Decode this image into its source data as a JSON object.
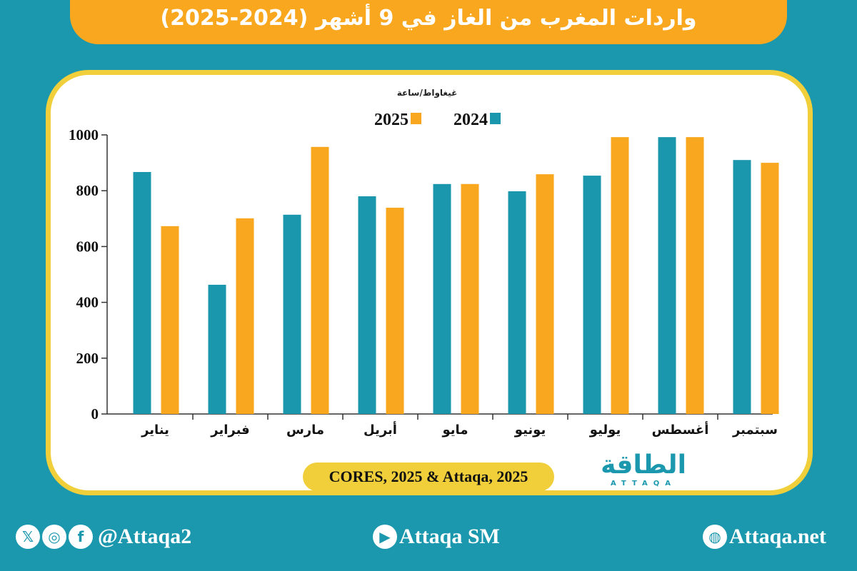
{
  "title": "واردات المغرب من الغاز في 9 أشهر (2024-2025)",
  "source": "CORES, 2025 & Attaqa, 2025",
  "logo": {
    "arabic": "الطاقة",
    "english": "ATTAQA"
  },
  "footer": {
    "social_handle": "@Attaqa2",
    "youtube": "Attaqa SM",
    "website": "Attaqa.net",
    "icons": [
      "x-icon",
      "instagram-icon",
      "facebook-icon",
      "youtube-icon",
      "globe-icon"
    ]
  },
  "colors": {
    "background": "#1b98ae",
    "series_2024": "#1b97ad",
    "series_2025": "#f8a71e",
    "frame": "#f0cf3a"
  },
  "chart_data": {
    "type": "bar",
    "unit_label": "غيغاواط/ساعة",
    "categories": [
      "يناير",
      "فبراير",
      "مارس",
      "أبريل",
      "مايو",
      "يونيو",
      "يوليو",
      "أغسطس",
      "سبتمبر"
    ],
    "series": [
      {
        "name": "2024",
        "color": "#1b97ad",
        "values": [
          867,
          463,
          714,
          780,
          824,
          798,
          854,
          992,
          910
        ]
      },
      {
        "name": "2025",
        "color": "#f8a71e",
        "values": [
          673,
          701,
          957,
          739,
          824,
          859,
          992,
          992,
          900
        ]
      }
    ],
    "yticks": [
      "0",
      "200",
      "400",
      "600",
      "800",
      "1000"
    ],
    "ylim": [
      0,
      1000
    ],
    "grid": false,
    "legend": "top-center"
  }
}
